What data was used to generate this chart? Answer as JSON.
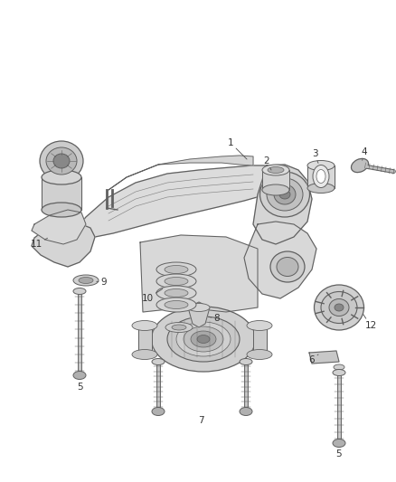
{
  "bg_color": "#ffffff",
  "lc": "#606060",
  "lc_dark": "#333333",
  "fc_light": "#e8e8e8",
  "fc_mid": "#d0d0d0",
  "fc_dark": "#b0b0b0",
  "fig_width": 4.38,
  "fig_height": 5.33,
  "dpi": 100,
  "label_fs": 7.5,
  "label_color": "#333333"
}
